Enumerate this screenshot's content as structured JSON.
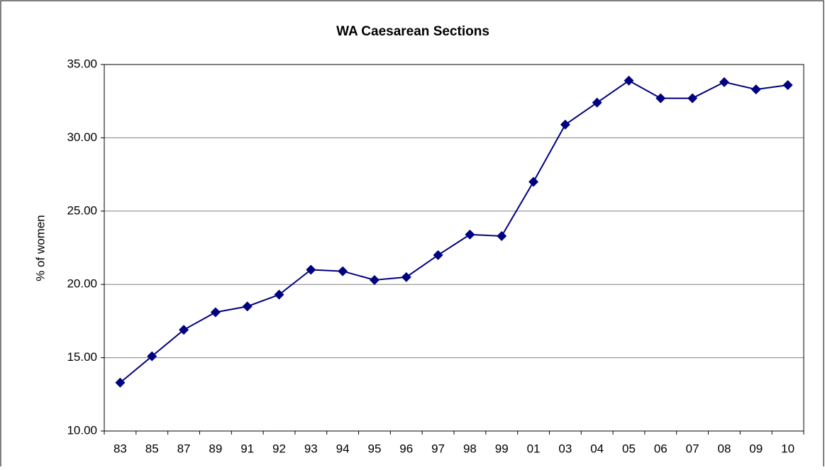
{
  "chart_data": {
    "type": "line",
    "title": "WA Caesarean Sections",
    "y_label": "% of women",
    "categories": [
      "83",
      "85",
      "87",
      "89",
      "91",
      "92",
      "93",
      "94",
      "95",
      "96",
      "97",
      "98",
      "99",
      "01",
      "03",
      "04",
      "05",
      "06",
      "07",
      "08",
      "09",
      "10"
    ],
    "values": [
      13.3,
      15.1,
      16.9,
      18.1,
      18.5,
      19.3,
      21.0,
      20.9,
      20.3,
      20.5,
      22.0,
      23.4,
      23.3,
      27.0,
      30.9,
      32.4,
      33.9,
      32.7,
      32.7,
      33.8,
      33.3,
      33.6
    ],
    "color": "#000080",
    "ylim": [
      10,
      35
    ],
    "yticks": [
      {
        "value": 10,
        "label": "10.00"
      },
      {
        "value": 15,
        "label": "15.00"
      },
      {
        "value": 20,
        "label": "20.00"
      },
      {
        "value": 25,
        "label": "25.00"
      },
      {
        "value": 30,
        "label": "30.00"
      },
      {
        "value": 35,
        "label": "35.00"
      }
    ],
    "grid": true
  }
}
